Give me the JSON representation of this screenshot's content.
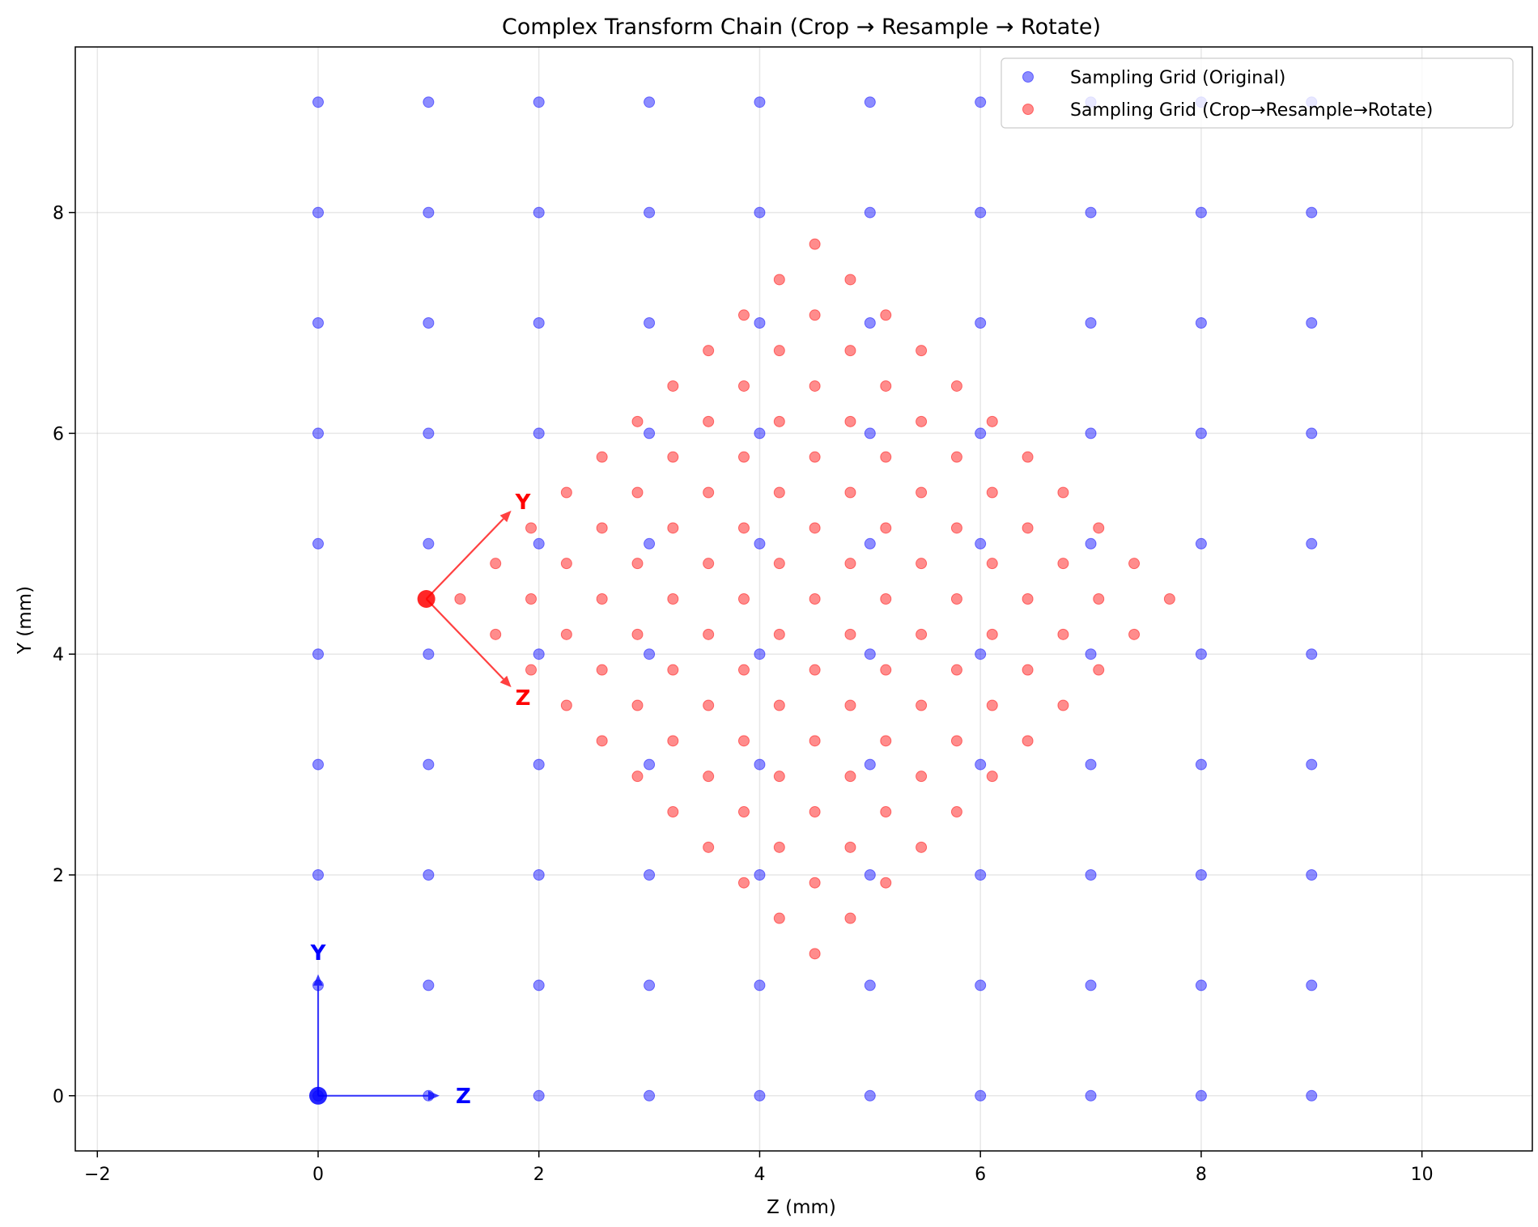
{
  "chart_data": {
    "type": "scatter",
    "title": "Complex Transform Chain (Crop → Resample → Rotate)",
    "xlabel": "Z (mm)",
    "ylabel": "Y (mm)",
    "xlim": [
      -2.2,
      11.0
    ],
    "ylim": [
      -0.5,
      9.5
    ],
    "xticks": [
      -2,
      0,
      2,
      4,
      6,
      8,
      10
    ],
    "yticks": [
      0,
      2,
      4,
      6,
      8
    ],
    "grid": true,
    "legend_position": "top-right",
    "colors": {
      "original": "#0000ff",
      "transformed": "#ff0000"
    },
    "series": [
      {
        "name": "Sampling Grid (Original)",
        "color": "#0000ff",
        "grid_z": [
          0,
          1,
          2,
          3,
          4,
          5,
          6,
          7,
          8,
          9
        ],
        "grid_y": [
          0,
          1,
          2,
          3,
          4,
          5,
          6,
          7,
          8,
          9
        ],
        "note_points": "all combinations of grid_z and grid_y"
      },
      {
        "name": "Sampling Grid (Crop→Resample→Rotate)",
        "color": "#ff0000",
        "center": [
          4.5,
          4.5
        ],
        "spacing": 0.4545,
        "rotation_deg": 45,
        "index_range": [
          -8,
          8
        ],
        "max_extent": 3.6,
        "note_points": "rotated grid around center, points within extent"
      }
    ],
    "annotations": {
      "original_frame": {
        "origin": [
          0,
          0
        ],
        "z_tip": [
          1.1,
          0
        ],
        "y_tip": [
          0,
          1.1
        ],
        "z_label": "Z",
        "y_label": "Y",
        "color": "#0000ff"
      },
      "transformed_frame": {
        "origin": [
          0.98,
          4.5
        ],
        "y_tip": [
          1.75,
          5.3
        ],
        "z_tip": [
          1.75,
          3.7
        ],
        "y_label": "Y",
        "z_label": "Z",
        "color": "#ff0000"
      }
    }
  }
}
